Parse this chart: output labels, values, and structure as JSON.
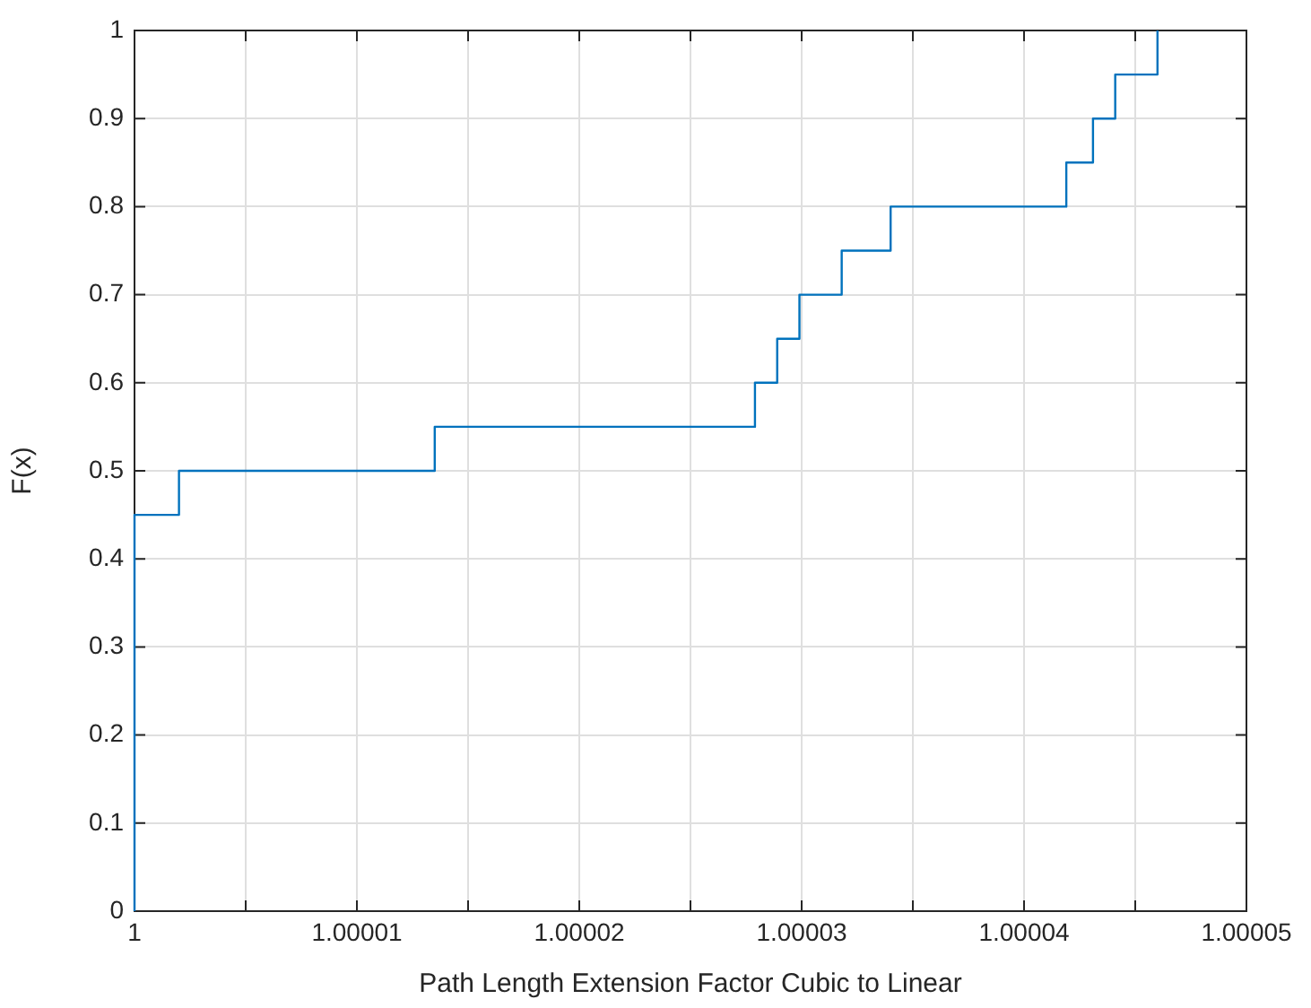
{
  "chart_data": {
    "type": "step",
    "xlabel": "Path Length Extension Factor Cubic to Linear",
    "ylabel": "F(x)",
    "x": [
      1,
      1,
      1.000002,
      1.0000135,
      1.0000279,
      1.0000289,
      1.0000299,
      1.0000318,
      1.000034,
      1.0000419,
      1.0000431,
      1.0000441,
      1.000046
    ],
    "series": [
      {
        "color": "#0072bd",
        "values": [
          0,
          0.45,
          0.5,
          0.55,
          0.6,
          0.65,
          0.7,
          0.75,
          0.8,
          0.85,
          0.9,
          0.95,
          1
        ]
      }
    ],
    "xlim": [
      1,
      1.00005
    ],
    "xticks": [
      {
        "value": 1,
        "label": "1"
      },
      {
        "value": 1.000005,
        "label": null
      },
      {
        "value": 1.00001,
        "label": "1.00001"
      },
      {
        "value": 1.000015,
        "label": null
      },
      {
        "value": 1.00002,
        "label": "1.00002"
      },
      {
        "value": 1.000025,
        "label": null
      },
      {
        "value": 1.00003,
        "label": "1.00003"
      },
      {
        "value": 1.000035,
        "label": null
      },
      {
        "value": 1.00004,
        "label": "1.00004"
      },
      {
        "value": 1.000045,
        "label": null
      },
      {
        "value": 1.00005,
        "label": "1.00005"
      }
    ],
    "ylim": [
      0,
      1
    ],
    "yticks": [
      0,
      0.1,
      0.2,
      0.3,
      0.4,
      0.5,
      0.6,
      0.7,
      0.8,
      0.9,
      1
    ],
    "grid": true
  }
}
